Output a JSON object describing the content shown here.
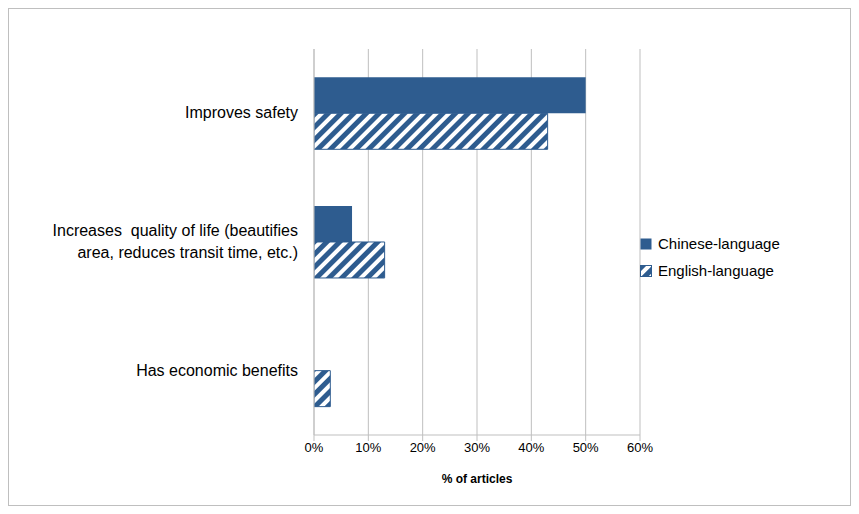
{
  "chart_data": {
    "type": "bar",
    "orientation": "horizontal",
    "categories": [
      "Improves safety",
      "Increases  quality of life (beautifies area, reduces transit time, etc.)",
      "Has economic benefits"
    ],
    "series": [
      {
        "name": "Chinese-language",
        "color": "#2e5c8f",
        "values": [
          50,
          7,
          0
        ]
      },
      {
        "name": "English-language",
        "color": "#2e5c8f",
        "values": [
          43,
          13,
          3
        ]
      }
    ],
    "xlim": [
      0,
      60
    ],
    "xticks": [
      {
        "value": 0,
        "label": "0%"
      },
      {
        "value": 10,
        "label": "10%"
      },
      {
        "value": 20,
        "label": "20%"
      },
      {
        "value": 30,
        "label": "30%"
      },
      {
        "value": 40,
        "label": "40%"
      },
      {
        "value": 50,
        "label": "50%"
      },
      {
        "value": 60,
        "label": "60%"
      }
    ],
    "xlabel": "% of articles",
    "grid": true,
    "legend": "right"
  }
}
